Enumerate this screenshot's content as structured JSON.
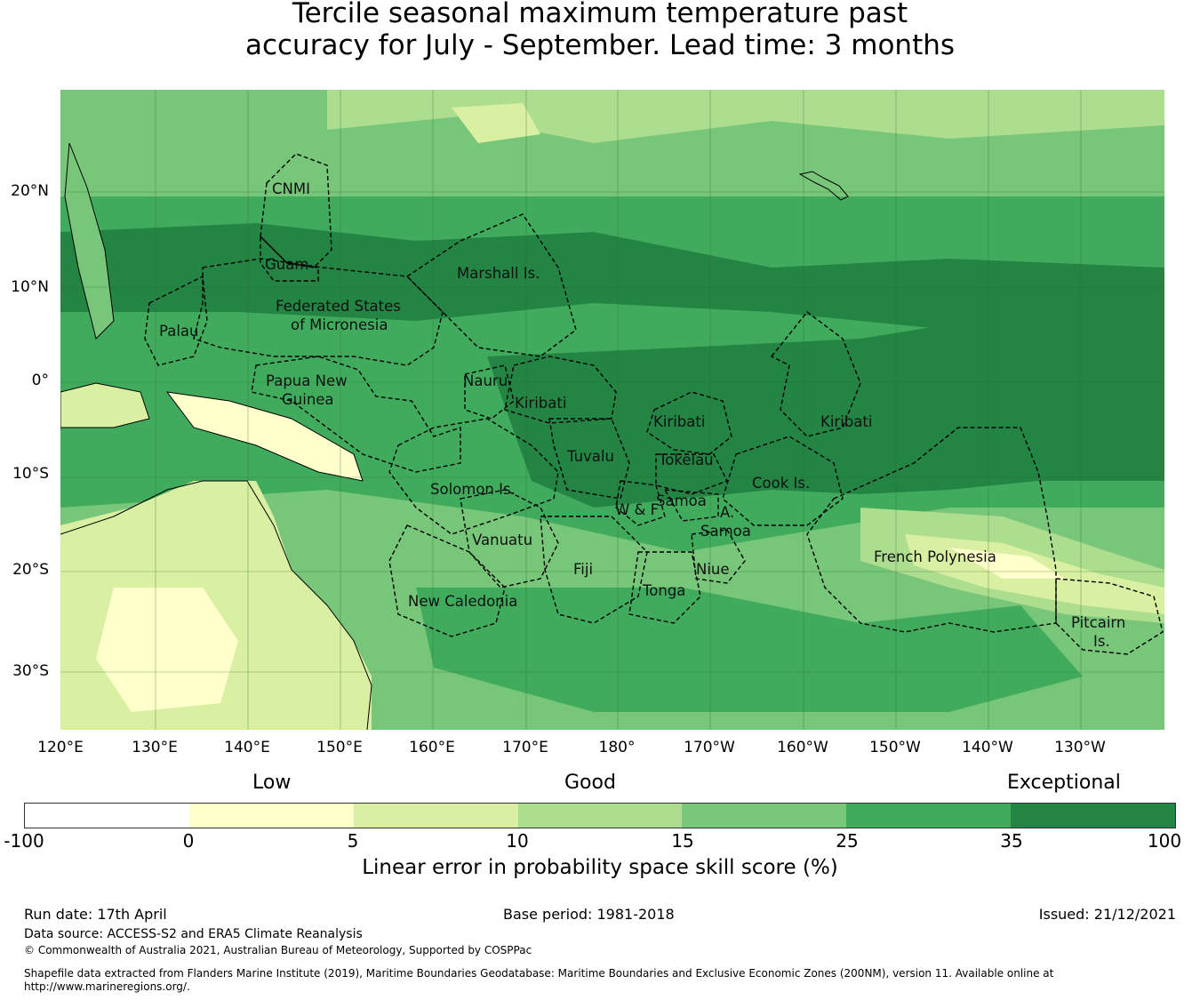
{
  "title_line1": "Tercile seasonal maximum temperature past",
  "title_line2": "accuracy for July - September. Lead time: 3 months",
  "lat_labels": [
    "20°N",
    "10°N",
    "0°",
    "10°S",
    "20°S",
    "30°S"
  ],
  "lon_labels": [
    "120°E",
    "130°E",
    "140°E",
    "150°E",
    "160°E",
    "170°E",
    "180°",
    "170°W",
    "160°W",
    "150°W",
    "140°W",
    "130°W"
  ],
  "regions": [
    "CNMI",
    "Guam",
    "Marshall Is.",
    "Federated States",
    "of Micronesia",
    "Palau",
    "Papua New",
    "Guinea",
    "Nauru",
    "Kiribati",
    "Kiribati",
    "Kiribati",
    "Tuvalu",
    "Tokelau",
    "Cook Is.",
    "Solomon Is.",
    "Samoa",
    "W & F",
    "A.",
    "Samoa",
    "Vanuatu",
    "Fiji",
    "Niue",
    "Tonga",
    "New Caledonia",
    "French Polynesia",
    "Pitcairn",
    "Is."
  ],
  "category_labels": {
    "low": "Low",
    "good": "Good",
    "exceptional": "Exceptional"
  },
  "colorbar": {
    "ticks": [
      "-100",
      "0",
      "5",
      "10",
      "15",
      "25",
      "35",
      "100"
    ],
    "colors": [
      "#ffffff",
      "#ffffcc",
      "#d9f0a3",
      "#addd8e",
      "#78c679",
      "#41ab5d",
      "#238443"
    ],
    "label": "Linear error in probability space skill score (%)"
  },
  "footer": {
    "run_date": "Run date: 17th April",
    "base_period": "Base period: 1981-2018",
    "issued": "Issued: 21/12/2021",
    "data_source": "Data source: ACCESS-S2 and ERA5 Climate Reanalysis",
    "copyright": "© Commonwealth of Australia 2021, Australian Bureau of Meteorology, Supported by COSPPac",
    "shapefile_line1": "Shapefile data extracted from Flanders Marine Institute (2019), Maritime Boundaries Geodatabase: Maritime Boundaries and Exclusive Economic Zones (200NM), version 11. Available online at",
    "shapefile_line2": "http://www.marineregions.org/."
  }
}
